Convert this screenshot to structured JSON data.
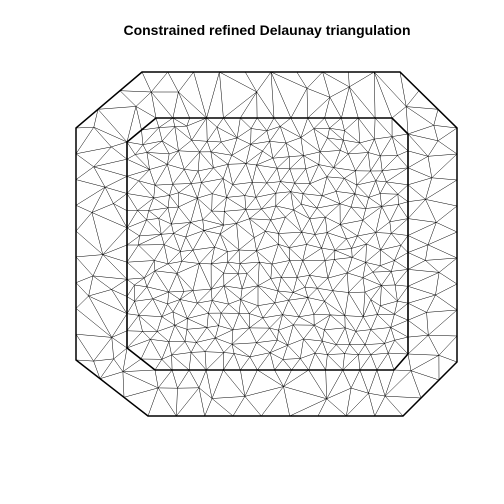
{
  "title": "Constrained refined Delaunay triangulation",
  "colors": {
    "background": "#ffffff",
    "edges": "#000000"
  }
}
